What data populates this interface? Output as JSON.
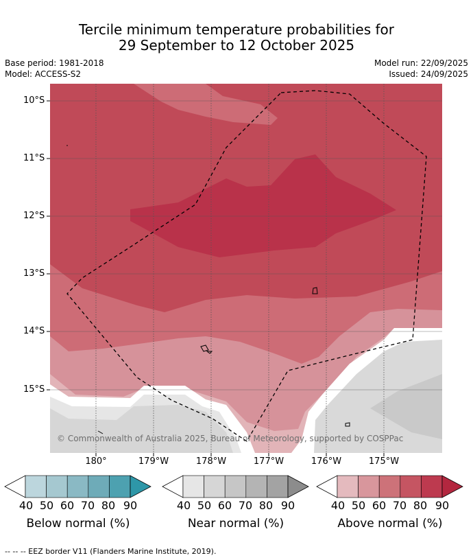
{
  "title": {
    "line1": "Tercile minimum temperature probabilities for",
    "line2": "29 September to 12 October 2025"
  },
  "meta": {
    "base_period": "Base period: 1981-2018",
    "model": "Model: ACCESS-S2",
    "model_run": "Model run: 22/09/2025",
    "issued": "Issued: 24/09/2025"
  },
  "map": {
    "copyright": "© Commonwealth of Australia 2025, Bureau of Meteorology, supported by COSPPac",
    "lat_labels": [
      "10°S",
      "11°S",
      "12°S",
      "13°S",
      "14°S",
      "15°S"
    ],
    "lon_labels": [
      "180°",
      "179°W",
      "178°W",
      "177°W",
      "176°W",
      "175°W"
    ],
    "colors": {
      "above_90": "#b3273f",
      "above_80": "#bd3a4f",
      "above_70": "#c55562",
      "above_60": "#cd7279",
      "above_50": "#d8969c",
      "above_40": "#e4babe",
      "near_40": "#e6e6e6",
      "near_50": "#d6d6d6",
      "near_60": "#c6c6c6",
      "near_70": "#b4b4b4",
      "near_80": "#a3a3a3",
      "near_90": "#8c8c8c",
      "below_40": "#bcd6dd",
      "below_50": "#a5c8d0",
      "below_60": "#8ab9c4",
      "below_70": "#6eabb8",
      "below_80": "#4da1b0",
      "below_90": "#2e97a8"
    }
  },
  "colorbars": [
    {
      "label": "Below normal (%)",
      "ticks": [
        "40",
        "50",
        "60",
        "70",
        "80",
        "90"
      ],
      "colors": [
        "#bcd6dd",
        "#a5c8d0",
        "#8ab9c4",
        "#6eabb8",
        "#4da1b0",
        "#2e97a8"
      ]
    },
    {
      "label": "Near normal (%)",
      "ticks": [
        "40",
        "50",
        "60",
        "70",
        "80",
        "90"
      ],
      "colors": [
        "#e6e6e6",
        "#d6d6d6",
        "#c6c6c6",
        "#b4b4b4",
        "#a3a3a3",
        "#8c8c8c"
      ]
    },
    {
      "label": "Above normal (%)",
      "ticks": [
        "40",
        "50",
        "60",
        "70",
        "80",
        "90"
      ],
      "colors": [
        "#e4babe",
        "#d8969c",
        "#cd7279",
        "#c55562",
        "#bd3a4f",
        "#b3273f"
      ]
    }
  ],
  "footer": "--  --  -- EEZ border V11 (Flanders Marine Institute, 2019)."
}
